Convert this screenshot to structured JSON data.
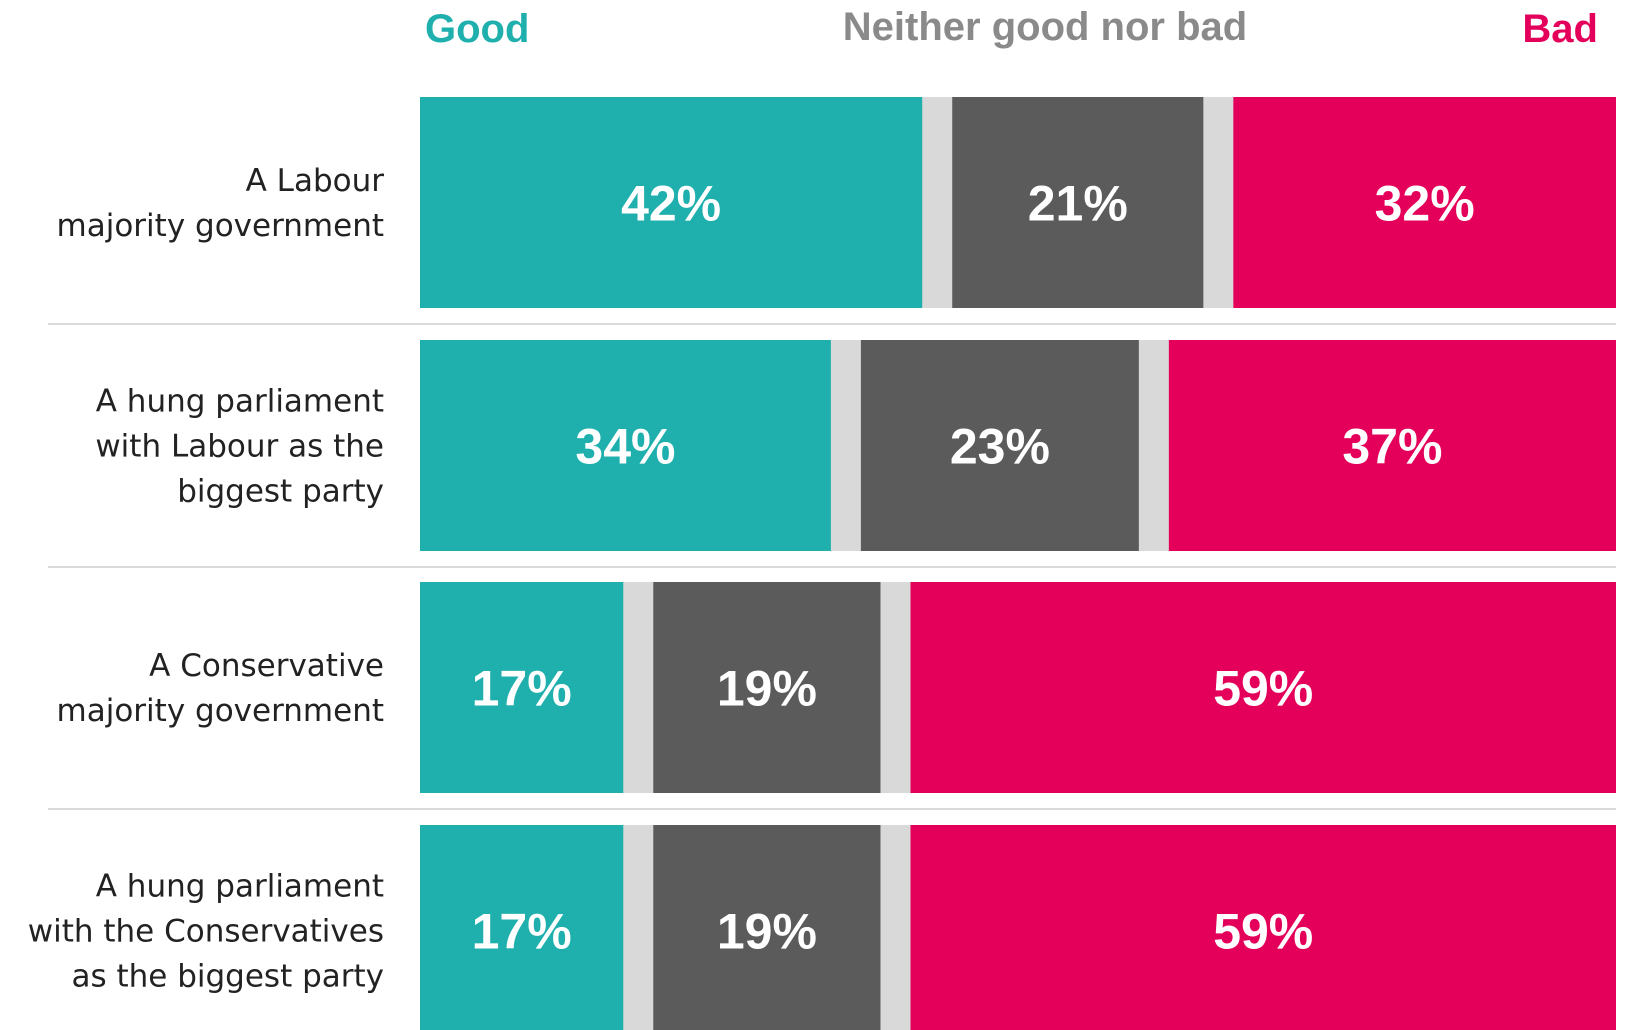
{
  "chart_data": {
    "type": "bar",
    "orientation": "horizontal",
    "stacked": true,
    "legend_placement": "top",
    "grid": false,
    "series": [
      {
        "name": "Good",
        "color": "#1fb0ae",
        "values": [
          42,
          34,
          17,
          17
        ]
      },
      {
        "name": "Neither good nor bad",
        "color": "#5b5b5b",
        "values": [
          21,
          23,
          19,
          19
        ]
      },
      {
        "name": "Bad",
        "color": "#e4005a",
        "values": [
          32,
          37,
          59,
          59
        ]
      }
    ],
    "remainder_color": "#d9d9d9",
    "value_labels": [
      [
        "42%",
        "21%",
        "32%"
      ],
      [
        "34%",
        "23%",
        "37%"
      ],
      [
        "17%",
        "19%",
        "59%"
      ],
      [
        "17%",
        "19%",
        "59%"
      ]
    ],
    "categories": [
      [
        "A Labour",
        "majority government"
      ],
      [
        "A hung parliament",
        "with Labour as the",
        "biggest party"
      ],
      [
        "A Conservative",
        "majority government"
      ],
      [
        "A hung parliament",
        "with the Conservatives",
        "as the biggest party"
      ]
    ],
    "divider_color": "#d9d9d9"
  }
}
